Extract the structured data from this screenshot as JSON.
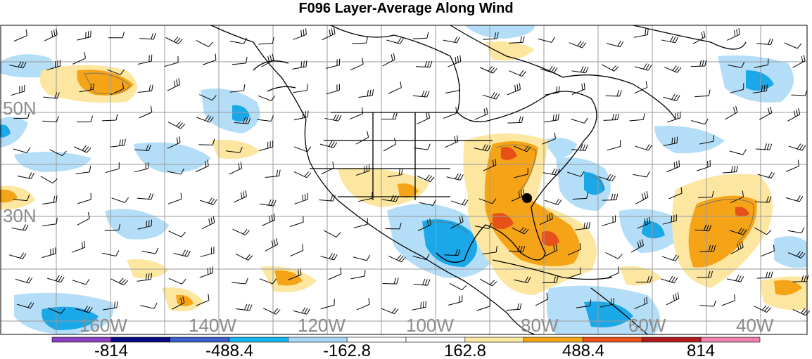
{
  "title": "F096 Layer-Average Along Wind",
  "lat_labels": [
    "50N",
    "30N"
  ],
  "lon_labels": [
    "160W",
    "140W",
    "120W",
    "100W",
    "80W",
    "60W",
    "40W"
  ],
  "colorbar": {
    "colors": [
      "#8c3fc0",
      "#0a0a80",
      "#3a5fc8",
      "#12b4f0",
      "#a8daf8",
      "#ffffff",
      "#ffffff",
      "#fce9a0",
      "#f5a418",
      "#e8501a",
      "#b01c1c",
      "#f080b0"
    ],
    "labels": [
      "-814",
      "-488.4",
      "-162.8",
      "162.8",
      "488.4",
      "814"
    ]
  },
  "colors": {
    "light_blue": "#b4def8",
    "mid_blue": "#1aa8e8",
    "light_yellow": "#fce6a0",
    "orange": "#f5a418",
    "red_orange": "#e8501a",
    "grid": "#9a9a9a",
    "coast": "#000000"
  },
  "marker": "black-dot"
}
